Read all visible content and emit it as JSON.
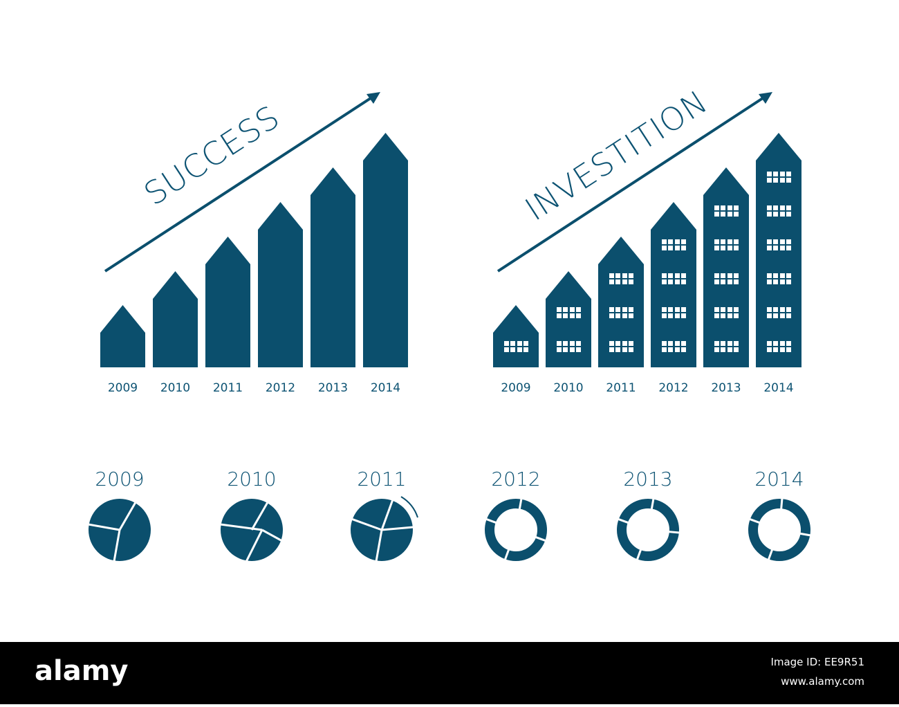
{
  "charts": [
    {
      "title": "SUCCESS",
      "labels": [
        "2009",
        "2010",
        "2011",
        "2012",
        "2013",
        "2014"
      ]
    },
    {
      "title": "INVESTITION",
      "labels": [
        "2009",
        "2010",
        "2011",
        "2012",
        "2013",
        "2014"
      ]
    }
  ],
  "pies": {
    "labels": [
      "2009",
      "2010",
      "2011",
      "2012",
      "2013",
      "2014"
    ]
  },
  "footer": {
    "logo": "alamy",
    "image_id": "Image ID: EE9R51",
    "url": "www.alamy.com"
  }
}
